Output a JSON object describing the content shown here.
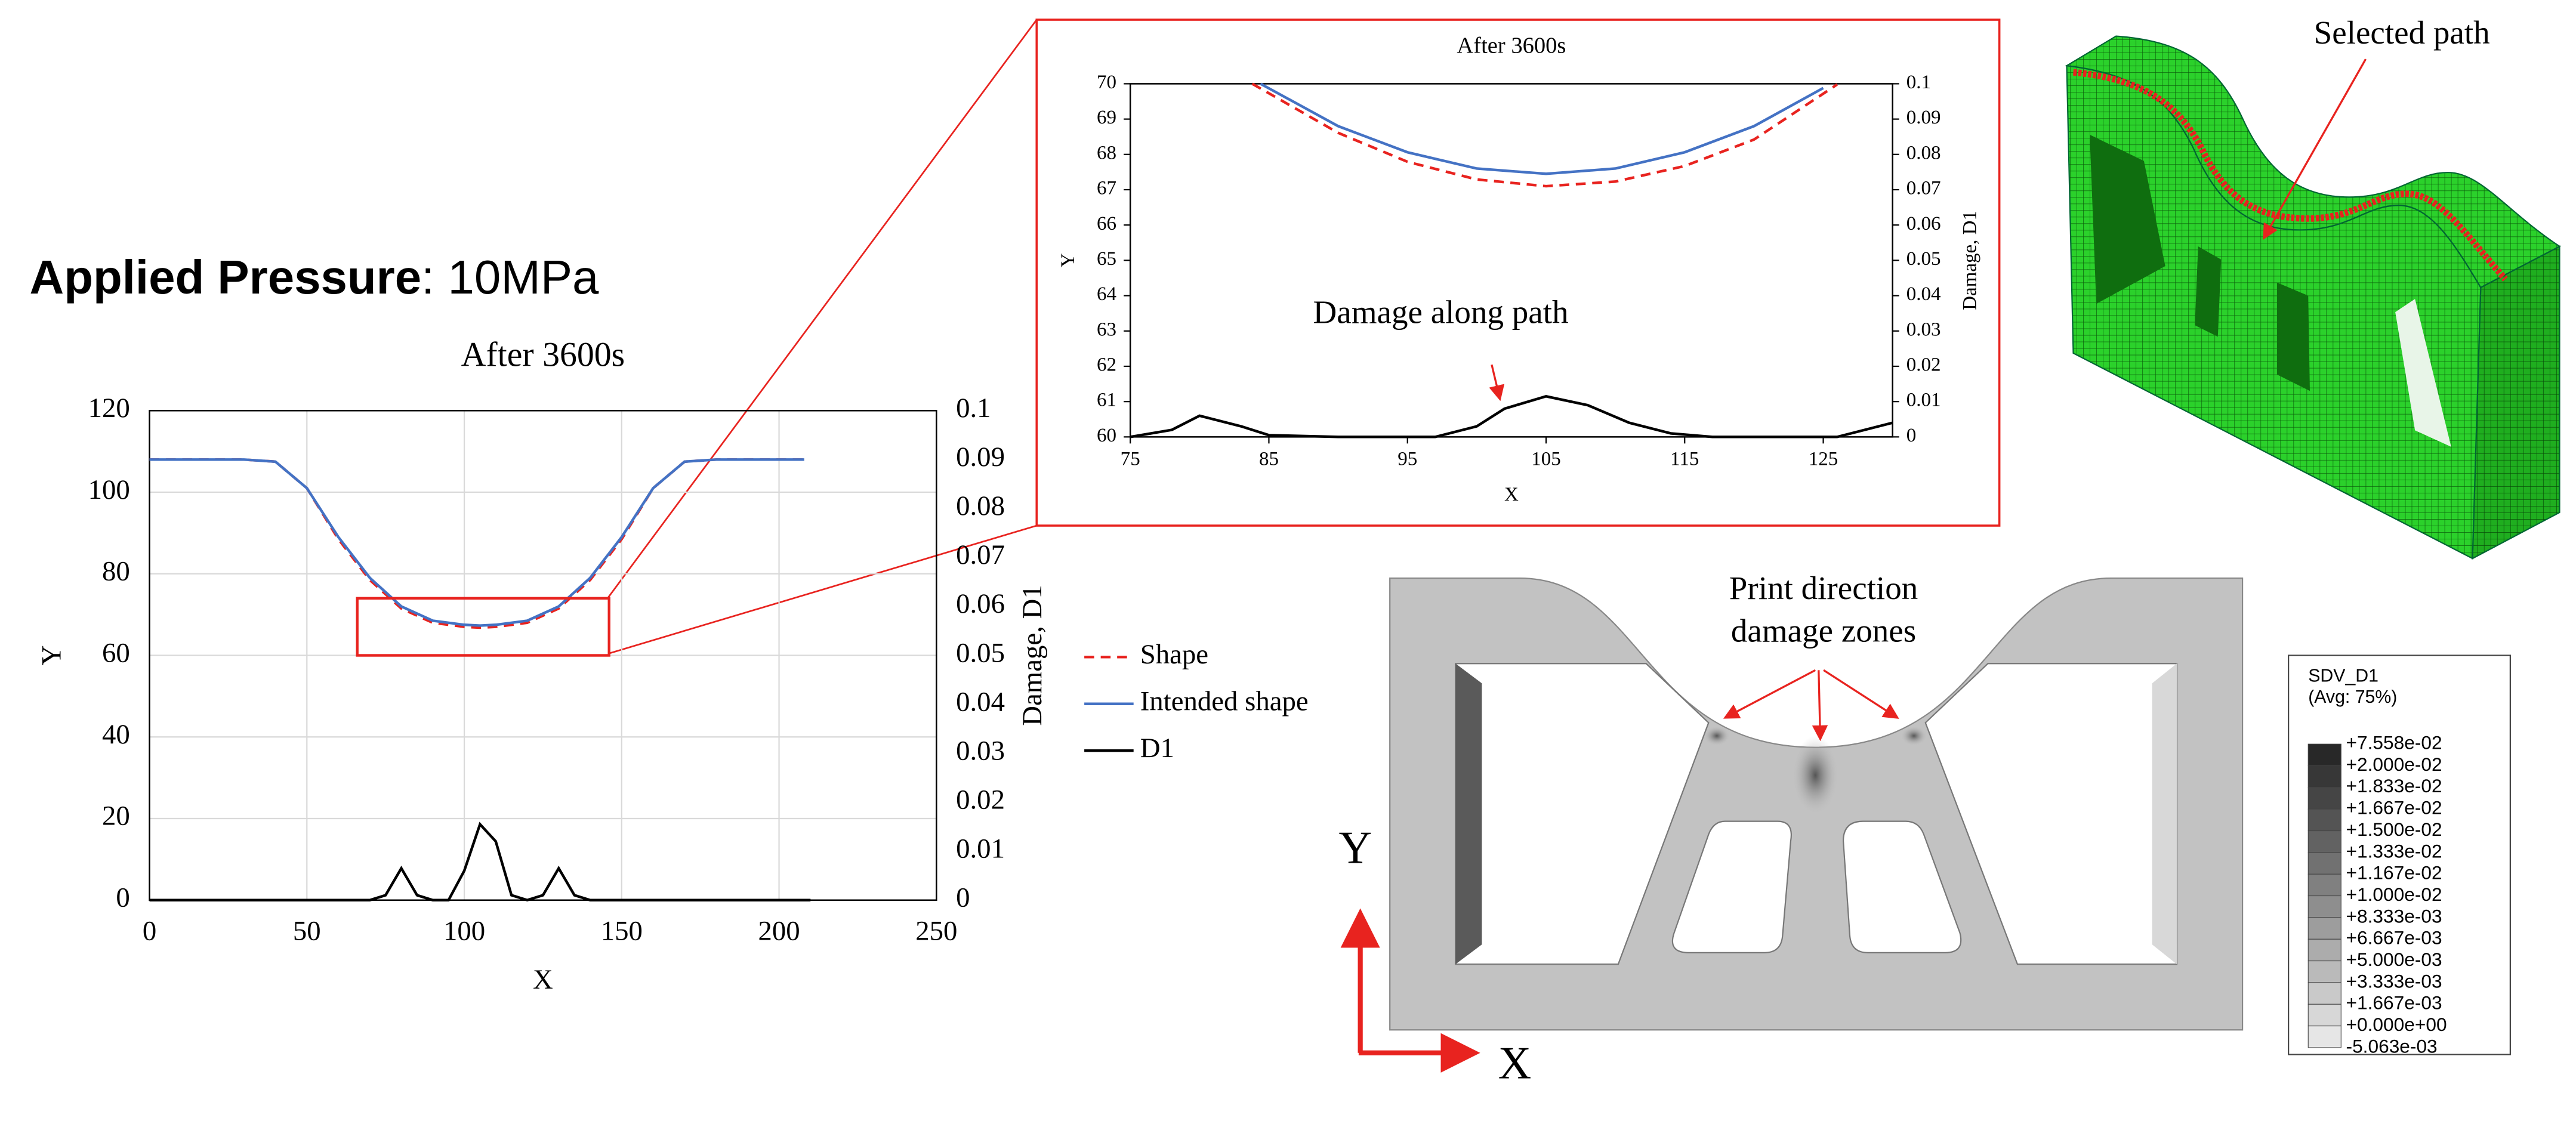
{
  "heading": {
    "bold": "Applied Pressure",
    "rest": ": 10MPa"
  },
  "chart_data": [
    {
      "type": "line",
      "title": "After 3600s",
      "xlabel": "X",
      "ylabel": "Y",
      "y2label": "Damage, D1",
      "xlim": [
        0,
        250
      ],
      "xticks": [
        0,
        50,
        100,
        150,
        200,
        250
      ],
      "ylim": [
        0,
        120
      ],
      "yticks": [
        0,
        20,
        40,
        60,
        80,
        100,
        120
      ],
      "y2lim": [
        0,
        0.1
      ],
      "y2ticks": [
        0,
        0.01,
        0.02,
        0.03,
        0.04,
        0.05,
        0.06,
        0.07,
        0.08,
        0.09,
        0.1
      ],
      "grid": true,
      "legend": "right",
      "zoom_box": {
        "x": [
          66,
          146
        ],
        "y": [
          60,
          74
        ]
      },
      "series": [
        {
          "name": "Shape",
          "color": "#e8231f",
          "style": "dashed",
          "x": [
            0,
            10,
            20,
            30,
            40,
            50,
            60,
            70,
            80,
            90,
            100,
            105,
            110,
            120,
            130,
            140,
            150,
            160,
            170,
            180,
            190,
            200,
            208
          ],
          "values": [
            108,
            108,
            108,
            108,
            107.5,
            101,
            88.5,
            78.5,
            71.5,
            68,
            67,
            66.8,
            67,
            68,
            71.5,
            78.5,
            88.5,
            101,
            107.5,
            108,
            108,
            108,
            108
          ]
        },
        {
          "name": "Intended shape",
          "color": "#4472c4",
          "style": "solid",
          "x": [
            0,
            10,
            20,
            30,
            40,
            50,
            60,
            70,
            80,
            90,
            100,
            105,
            110,
            120,
            130,
            140,
            150,
            160,
            170,
            180,
            190,
            200,
            208
          ],
          "values": [
            108,
            108,
            108,
            108,
            107.5,
            101,
            89,
            79,
            72,
            68.5,
            67.5,
            67.3,
            67.5,
            68.5,
            72,
            79,
            89,
            101,
            107.5,
            108,
            108,
            108,
            108
          ]
        },
        {
          "name": "D1",
          "color": "#000000",
          "style": "solid",
          "axis": "y2",
          "x": [
            0,
            70,
            75,
            80,
            85,
            90,
            95,
            100,
            105,
            110,
            115,
            120,
            125,
            130,
            135,
            140,
            210
          ],
          "values": [
            0,
            0,
            0.001,
            0.0065,
            0.001,
            0,
            0,
            0.006,
            0.0155,
            0.012,
            0.001,
            0,
            0.001,
            0.0065,
            0.001,
            0,
            0
          ]
        }
      ]
    },
    {
      "type": "line",
      "title": "After 3600s",
      "xlabel": "X",
      "ylabel": "Y",
      "y2label": "Damage, D1",
      "xlim": [
        75,
        130
      ],
      "xticks": [
        75,
        85,
        95,
        105,
        115,
        125
      ],
      "ylim": [
        60,
        70
      ],
      "yticks": [
        60,
        61,
        62,
        63,
        64,
        65,
        66,
        67,
        68,
        69,
        70
      ],
      "y2lim": [
        0,
        0.1
      ],
      "y2ticks": [
        0,
        0.01,
        0.02,
        0.03,
        0.04,
        0.05,
        0.06,
        0.07,
        0.08,
        0.09,
        0.1
      ],
      "grid": false,
      "annotation": "Damage along path",
      "series": [
        {
          "name": "Shape",
          "color": "#e8231f",
          "style": "dashed",
          "x": [
            83.8,
            90,
            95,
            100,
            105,
            110,
            115,
            120,
            126
          ],
          "values": [
            70,
            68.61,
            67.79,
            67.29,
            67.1,
            67.23,
            67.67,
            68.42,
            69.98
          ]
        },
        {
          "name": "Intended shape",
          "color": "#4472c4",
          "style": "solid",
          "x": [
            84.4,
            90,
            95,
            100,
            105,
            110,
            115,
            120,
            125
          ],
          "values": [
            70,
            68.8,
            68.06,
            67.6,
            67.45,
            67.6,
            68.06,
            68.8,
            69.88
          ]
        },
        {
          "name": "D1",
          "color": "#000000",
          "style": "solid",
          "axis": "y2",
          "x": [
            75,
            78,
            80,
            83,
            85,
            90,
            97,
            100,
            102,
            105,
            108,
            111,
            114,
            117,
            126,
            130
          ],
          "values": [
            0,
            0.002,
            0.006,
            0.003,
            0.0005,
            0,
            0,
            0.003,
            0.008,
            0.0115,
            0.009,
            0.004,
            0.001,
            0,
            0,
            0.004
          ]
        }
      ]
    }
  ],
  "model_labels": {
    "selected_path": "Selected path",
    "print_direction": [
      "Print direction",
      "damage zones"
    ],
    "axis_y": "Y",
    "axis_x": "X"
  },
  "colorbar": {
    "title": "SDV_D1",
    "subtitle": "(Avg: 75%)",
    "labels": [
      "+7.558e-02",
      "+2.000e-02",
      "+1.833e-02",
      "+1.667e-02",
      "+1.500e-02",
      "+1.333e-02",
      "+1.167e-02",
      "+1.000e-02",
      "+8.333e-03",
      "+6.667e-03",
      "+5.000e-03",
      "+3.333e-03",
      "+1.667e-03",
      "+0.000e+00",
      "-5.063e-03"
    ]
  }
}
